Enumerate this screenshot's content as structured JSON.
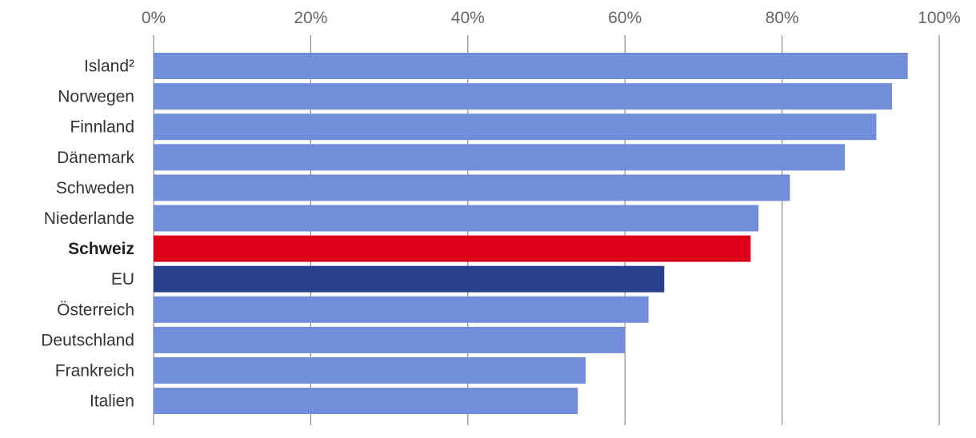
{
  "chart_data": {
    "type": "bar",
    "orientation": "horizontal",
    "title": "",
    "xlabel": "",
    "ylabel": "",
    "xlim": [
      0,
      100
    ],
    "x_unit": "%",
    "x_ticks": [
      "0%",
      "20%",
      "40%",
      "60%",
      "80%",
      "100%"
    ],
    "x_tick_values": [
      0,
      20,
      40,
      60,
      80,
      100
    ],
    "x_axis_position": "top",
    "grid": true,
    "categories": [
      "Island²",
      "Norwegen",
      "Finnland",
      "Dänemark",
      "Schweden",
      "Niederlande",
      "Schweiz",
      "EU",
      "Österreich",
      "Deutschland",
      "Frankreich",
      "Italien"
    ],
    "values": [
      96,
      94,
      92,
      88,
      81,
      77,
      76,
      65,
      63,
      60,
      55,
      54
    ],
    "highlight": [
      "none",
      "none",
      "none",
      "none",
      "none",
      "none",
      "bold",
      "none",
      "none",
      "none",
      "none",
      "none"
    ],
    "bar_colors": [
      "#728dda",
      "#728dda",
      "#728dda",
      "#728dda",
      "#728dda",
      "#728dda",
      "#de001b",
      "#283f8c",
      "#728dda",
      "#728dda",
      "#728dda",
      "#728dda"
    ]
  }
}
